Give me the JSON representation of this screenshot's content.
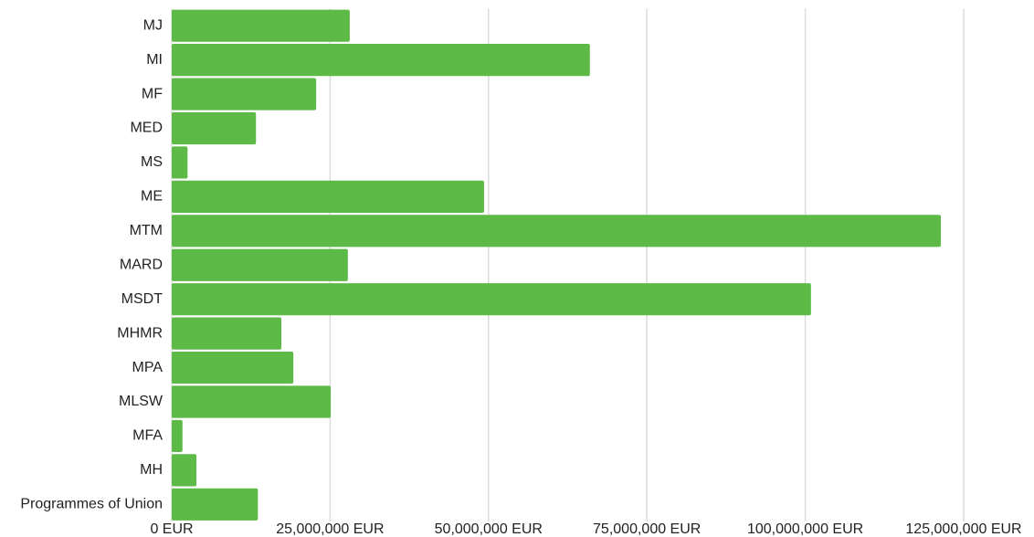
{
  "chart_data": {
    "type": "bar",
    "orientation": "horizontal",
    "categories": [
      "MJ",
      "MI",
      "MF",
      "MED",
      "MS",
      "ME",
      "MTM",
      "MARD",
      "MSDT",
      "MHMR",
      "MPA",
      "MLSW",
      "MFA",
      "MH",
      "Programmes of Union"
    ],
    "values": [
      28100000,
      66000000,
      22800000,
      13300000,
      2500000,
      49300000,
      121400000,
      27800000,
      100900000,
      17300000,
      19200000,
      25100000,
      1700000,
      3900000,
      13600000
    ],
    "color": "#5dba47",
    "xlim": [
      0,
      125000000
    ],
    "xticks": [
      {
        "value": 0,
        "label": "0 EUR"
      },
      {
        "value": 25000000,
        "label": "25,000,000 EUR"
      },
      {
        "value": 50000000,
        "label": "50,000,000 EUR"
      },
      {
        "value": 75000000,
        "label": "75,000,000 EUR"
      },
      {
        "value": 100000000,
        "label": "100,000,000 EUR"
      },
      {
        "value": 125000000,
        "label": "125,000,000 EUR"
      }
    ],
    "grid": true
  }
}
